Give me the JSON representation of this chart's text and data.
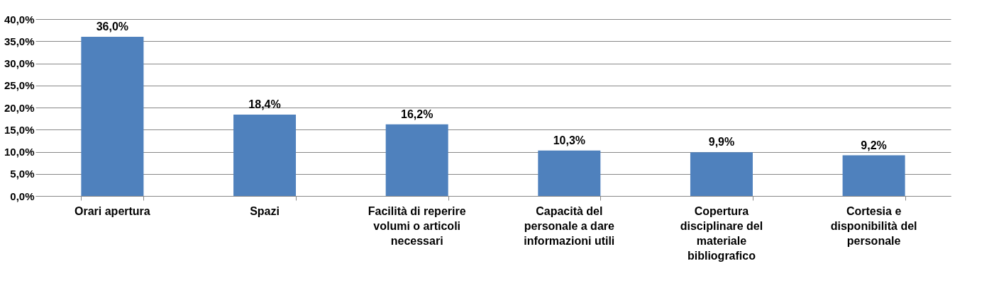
{
  "chart_data": {
    "type": "bar",
    "categories": [
      "Orari apertura",
      "Spazi",
      "Facilità di reperire volumi o articoli necessari",
      "Capacità del personale a dare informazioni utili",
      "Copertura disciplinare del materiale bibliografico",
      "Cortesia e disponibilità del personale"
    ],
    "values": [
      36.0,
      18.4,
      16.2,
      10.3,
      9.9,
      9.2
    ],
    "value_labels": [
      "36,0%",
      "18,4%",
      "16,2%",
      "10,3%",
      "9,9%",
      "9,2%"
    ],
    "color": "#4f81bd",
    "ylim": [
      0,
      40
    ],
    "yticks": [
      {
        "value": 0,
        "label": "0,0%"
      },
      {
        "value": 5,
        "label": "5,0%"
      },
      {
        "value": 10,
        "label": "10,0%"
      },
      {
        "value": 15,
        "label": "15,0%"
      },
      {
        "value": 20,
        "label": "20,0%"
      },
      {
        "value": 25,
        "label": "25,0%"
      },
      {
        "value": 30,
        "label": "30,0%"
      },
      {
        "value": 35,
        "label": "35,0%"
      },
      {
        "value": 40,
        "label": "40,0%"
      }
    ],
    "grid": "y"
  }
}
